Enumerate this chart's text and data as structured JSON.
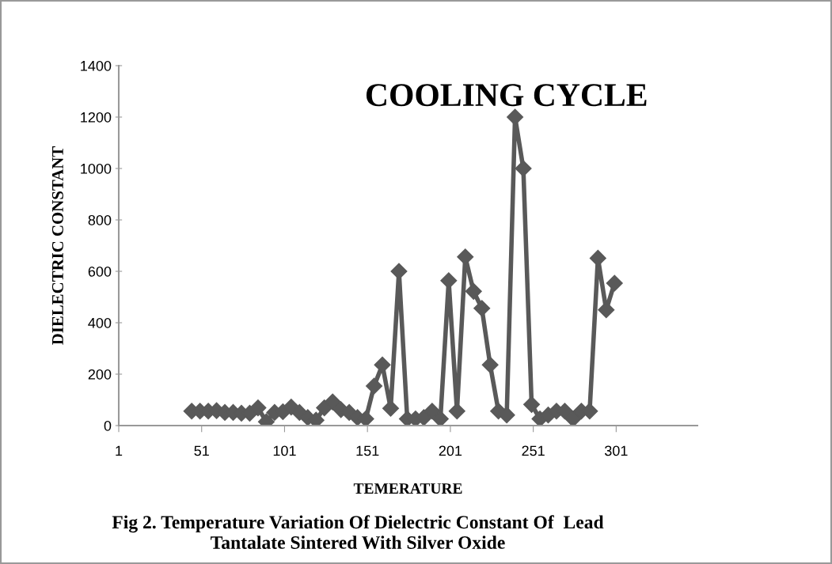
{
  "chart_data": {
    "type": "line",
    "title": "COOLING CYCLE",
    "xlabel": "TEMERATURE",
    "ylabel": "DIELECTRIC CONSTANT",
    "annotations": [
      "Fig 2. Temperature Variation Of Dielectric Constant Of  Lead\nTantalate Sintered With Silver Oxide"
    ],
    "x": [
      45,
      50,
      55,
      60,
      65,
      70,
      75,
      80,
      85,
      90,
      95,
      100,
      105,
      110,
      115,
      120,
      125,
      130,
      135,
      140,
      145,
      150,
      155,
      160,
      165,
      170,
      175,
      180,
      185,
      190,
      195,
      200,
      205,
      210,
      215,
      220,
      225,
      230,
      235,
      240,
      245,
      250,
      255,
      260,
      265,
      270,
      275,
      280,
      285,
      290,
      295,
      300
    ],
    "series": [
      {
        "color": "#595959",
        "values": [
          56,
          56,
          56,
          58,
          51,
          51,
          48,
          48,
          69,
          15,
          51,
          54,
          72,
          51,
          31,
          21,
          69,
          92,
          62,
          51,
          31,
          26,
          154,
          236,
          67,
          600,
          26,
          26,
          31,
          56,
          26,
          564,
          56,
          656,
          522,
          456,
          236,
          56,
          41,
          1200,
          1000,
          82,
          26,
          41,
          56,
          56,
          26,
          56,
          56,
          651,
          450,
          554
        ]
      }
    ],
    "xlim": [
      1,
      350
    ],
    "xticks": [
      1,
      51,
      101,
      151,
      201,
      251,
      301
    ],
    "ylim": [
      0,
      1400
    ],
    "yticks": [
      0,
      200,
      400,
      600,
      800,
      1000,
      1200,
      1400
    ],
    "grid": false,
    "legend": false,
    "marker": "diamond",
    "line_style": "solid"
  }
}
